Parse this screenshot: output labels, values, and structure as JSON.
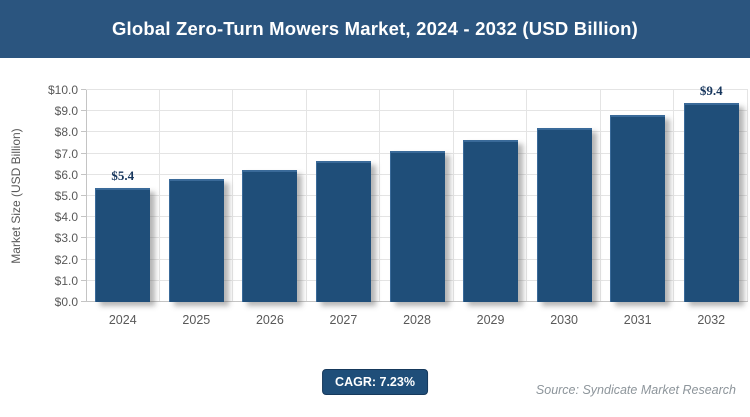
{
  "header": {
    "title": "Global Zero-Turn Mowers Market, 2024 - 2032 (USD Billion)"
  },
  "chart_data": {
    "type": "bar",
    "title": "Global Zero-Turn Mowers Market, 2024 - 2032 (USD Billion)",
    "categories": [
      "2024",
      "2025",
      "2026",
      "2027",
      "2028",
      "2029",
      "2030",
      "2031",
      "2032"
    ],
    "values": [
      5.4,
      5.79,
      6.21,
      6.66,
      7.14,
      7.66,
      8.21,
      8.8,
      9.4
    ],
    "point_labels": [
      "$5.4",
      "",
      "",
      "",
      "",
      "",
      "",
      "",
      "$9.4"
    ],
    "xlabel": "",
    "ylabel": "Market Size (USD Billion)",
    "ylim": [
      0,
      10
    ],
    "ytick_step": 1,
    "ytick_labels": [
      "$0.0",
      "$1.0",
      "$2.0",
      "$3.0",
      "$4.0",
      "$5.0",
      "$6.0",
      "$7.0",
      "$8.0",
      "$9.0",
      "$10.0"
    ],
    "grid": true,
    "legend": false
  },
  "footer": {
    "cagr_label": "CAGR: 7.23%",
    "source": "Source: Syndicate Market Research"
  },
  "colors": {
    "header_bg": "#2B557F",
    "bar": "#1F4E79",
    "bar_edge": "#3A6A99",
    "badge_bg": "#1F4E79",
    "grid": "#E4E4E4",
    "axis": "#C4C4C4",
    "tick_label": "#595959",
    "data_label": "#17365D",
    "source_text": "#8D959B"
  }
}
